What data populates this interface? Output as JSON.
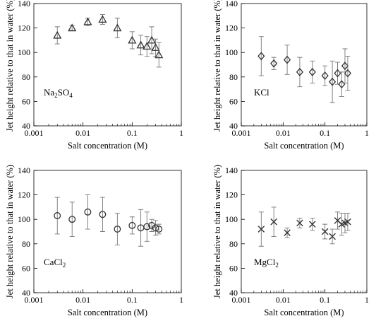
{
  "chart_data": [
    {
      "type": "scatter",
      "panel_label": "Na2SO4",
      "panel_label_main": "Na",
      "panel_label_sub1": "2",
      "panel_label_mid": "SO",
      "panel_label_sub2": "4",
      "marker": "triangle",
      "xlabel": "Salt concentration (M)",
      "ylabel": "Jet height relative to that in water (%)",
      "x_scale": "log",
      "xlim": [
        0.001,
        1
      ],
      "ylim": [
        40,
        140
      ],
      "x_tick_labels": [
        "0.001",
        "0.01",
        "0.1",
        "1"
      ],
      "y_tick_labels": [
        "40",
        "60",
        "80",
        "100",
        "120",
        "140"
      ],
      "grid": false,
      "series": [
        {
          "x": [
            0.003,
            0.006,
            0.0125,
            0.025,
            0.05,
            0.1,
            0.15,
            0.2,
            0.25,
            0.3,
            0.35
          ],
          "y": [
            114,
            120,
            125,
            127,
            120,
            110,
            106,
            105,
            110,
            104,
            98
          ],
          "err": [
            7,
            2,
            3,
            4,
            8,
            7,
            8,
            8,
            11,
            7,
            10
          ]
        }
      ]
    },
    {
      "type": "scatter",
      "panel_label": "KCl",
      "marker": "diamond",
      "xlabel": "Salt concentration (M)",
      "ylabel": "Jet height relative to that in water (%)",
      "x_scale": "log",
      "xlim": [
        0.001,
        1
      ],
      "ylim": [
        40,
        140
      ],
      "x_tick_labels": [
        "0.001",
        "0.01",
        "0.1",
        "1"
      ],
      "y_tick_labels": [
        "40",
        "60",
        "80",
        "100",
        "120",
        "140"
      ],
      "grid": false,
      "series": [
        {
          "x": [
            0.003,
            0.006,
            0.0125,
            0.025,
            0.05,
            0.1,
            0.15,
            0.2,
            0.25,
            0.3,
            0.35
          ],
          "y": [
            97,
            91,
            94,
            84,
            84,
            81,
            76,
            83,
            74,
            89,
            83
          ],
          "err": [
            16,
            5,
            12,
            12,
            9,
            8,
            17,
            9,
            10,
            14,
            14
          ]
        }
      ]
    },
    {
      "type": "scatter",
      "panel_label": "CaCl2",
      "panel_label_main": "CaCl",
      "panel_label_sub1": "2",
      "marker": "circle",
      "xlabel": "Salt concentration (M)",
      "ylabel": "Jet height relative to that in water (%)",
      "x_scale": "log",
      "xlim": [
        0.001,
        1
      ],
      "ylim": [
        40,
        140
      ],
      "x_tick_labels": [
        "0.001",
        "0.01",
        "0.1",
        "1"
      ],
      "y_tick_labels": [
        "40",
        "60",
        "80",
        "100",
        "120",
        "140"
      ],
      "grid": false,
      "series": [
        {
          "x": [
            0.003,
            0.006,
            0.0125,
            0.025,
            0.05,
            0.1,
            0.15,
            0.2,
            0.25,
            0.3,
            0.35
          ],
          "y": [
            103,
            100,
            106,
            104,
            92,
            95,
            93,
            94,
            95,
            93,
            92
          ],
          "err": [
            15,
            14,
            14,
            14,
            13,
            7,
            15,
            12,
            5,
            6,
            4
          ]
        }
      ]
    },
    {
      "type": "scatter",
      "panel_label": "MgCl2",
      "panel_label_main": "MgCl",
      "panel_label_sub1": "2",
      "marker": "x",
      "xlabel": "Salt concentration (M)",
      "ylabel": "Jet height relative to that in water (%)",
      "x_scale": "log",
      "xlim": [
        0.001,
        1
      ],
      "ylim": [
        40,
        140
      ],
      "x_tick_labels": [
        "0.001",
        "0.01",
        "0.1",
        "1"
      ],
      "y_tick_labels": [
        "40",
        "60",
        "80",
        "100",
        "120",
        "140"
      ],
      "grid": false,
      "series": [
        {
          "x": [
            0.003,
            0.006,
            0.0125,
            0.025,
            0.05,
            0.1,
            0.15,
            0.2,
            0.25,
            0.3,
            0.35
          ],
          "y": [
            92,
            98,
            89,
            97,
            96,
            90,
            86,
            99,
            96,
            97,
            98
          ],
          "err": [
            14,
            12,
            4,
            4,
            5,
            6,
            6,
            7,
            9,
            8,
            7
          ]
        }
      ]
    }
  ]
}
